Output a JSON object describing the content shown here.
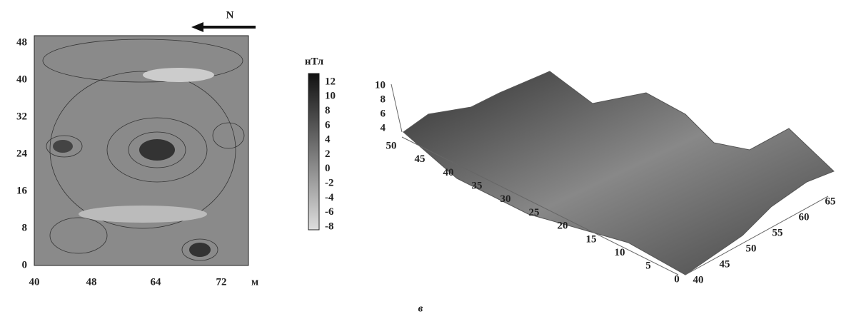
{
  "map": {
    "north": "N",
    "yticks": [
      "0",
      "8",
      "16",
      "24",
      "32",
      "40",
      "48"
    ],
    "xticks": [
      "40",
      "48",
      "64",
      "72"
    ],
    "x_unit": "м"
  },
  "colorbar": {
    "unit": "нТл",
    "labels": [
      "12",
      "10",
      "8",
      "6",
      "4",
      "2",
      "0",
      "-2",
      "-4",
      "-6",
      "-8"
    ]
  },
  "surface": {
    "zticks": [
      "10",
      "8",
      "6",
      "4"
    ],
    "left_axis": [
      "50",
      "45",
      "40",
      "35",
      "30",
      "25",
      "20",
      "15",
      "10",
      "5",
      "0"
    ],
    "right_axis": [
      "40",
      "45",
      "50",
      "55",
      "60",
      "65"
    ]
  },
  "caption": "в"
}
